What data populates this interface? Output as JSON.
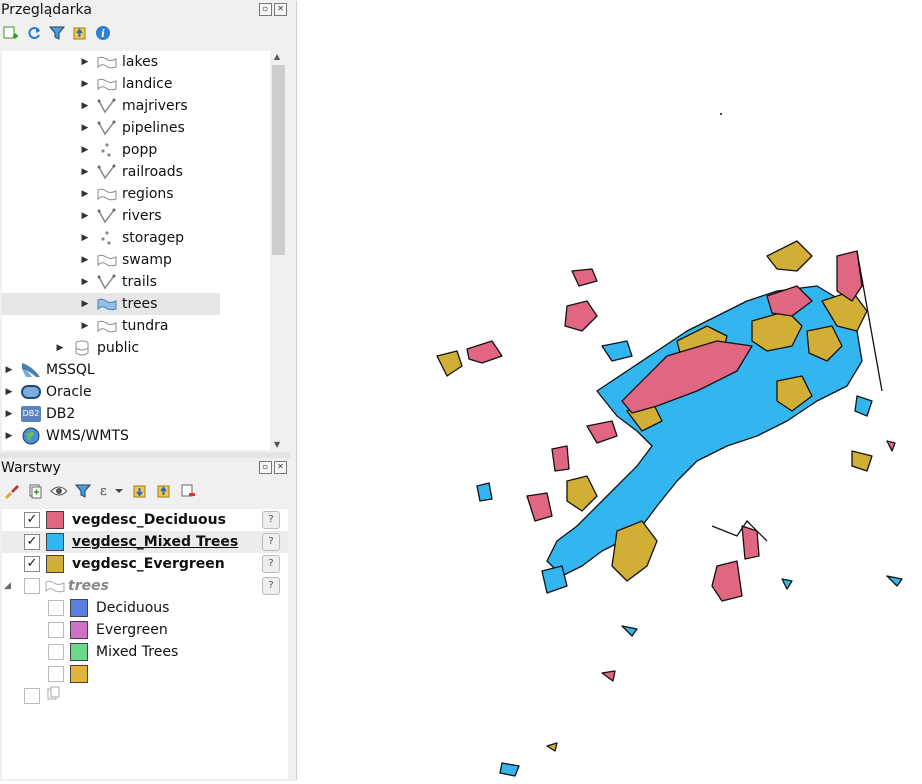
{
  "browser_panel": {
    "title": "Przeglądarka",
    "tree": [
      {
        "label": "lakes",
        "icon": "polygon-layer-icon"
      },
      {
        "label": "landice",
        "icon": "polygon-layer-icon"
      },
      {
        "label": "majrivers",
        "icon": "line-layer-icon"
      },
      {
        "label": "pipelines",
        "icon": "line-layer-icon"
      },
      {
        "label": "popp",
        "icon": "point-layer-icon"
      },
      {
        "label": "railroads",
        "icon": "line-layer-icon"
      },
      {
        "label": "regions",
        "icon": "polygon-layer-icon"
      },
      {
        "label": "rivers",
        "icon": "line-layer-icon"
      },
      {
        "label": "storagep",
        "icon": "point-layer-icon"
      },
      {
        "label": "swamp",
        "icon": "polygon-layer-icon"
      },
      {
        "label": "trails",
        "icon": "line-layer-icon"
      },
      {
        "label": "trees",
        "icon": "polygon-layer-icon",
        "selected": true
      },
      {
        "label": "tundra",
        "icon": "polygon-layer-icon"
      },
      {
        "label": "public",
        "icon": "database-schema-icon"
      },
      {
        "label": "MSSQL",
        "icon": "mssql-icon"
      },
      {
        "label": "Oracle",
        "icon": "oracle-icon"
      },
      {
        "label": "DB2",
        "icon": "db2-icon"
      },
      {
        "label": "WMS/WMTS",
        "icon": "globe-icon"
      }
    ],
    "db2_badge": "DB2"
  },
  "layers_panel": {
    "title": "Warstwy",
    "layers": [
      {
        "label": "vegdesc_Deciduous",
        "color": "#e06682",
        "checked": true
      },
      {
        "label": "vegdesc_Mixed Trees",
        "color": "#33b6f0",
        "checked": true
      },
      {
        "label": "vegdesc_Evergreen",
        "color": "#d1ae35",
        "checked": true
      },
      {
        "label": "trees",
        "checked": false
      },
      {
        "label": "Deciduous",
        "color": "#5b7fe2",
        "checked": false
      },
      {
        "label": "Evergreen",
        "color": "#d070c6",
        "checked": false
      },
      {
        "label": "Mixed Trees",
        "color": "#6ad78a",
        "checked": false
      },
      {
        "label": "",
        "color": "#e3b43c",
        "checked": false
      }
    ],
    "help_glyph": "?",
    "check_glyph": "✓"
  },
  "map": {
    "colors": {
      "deciduous": "#e06682",
      "mixed": "#33b6f0",
      "evergreen": "#d1ae35",
      "outline": "#111111"
    }
  }
}
